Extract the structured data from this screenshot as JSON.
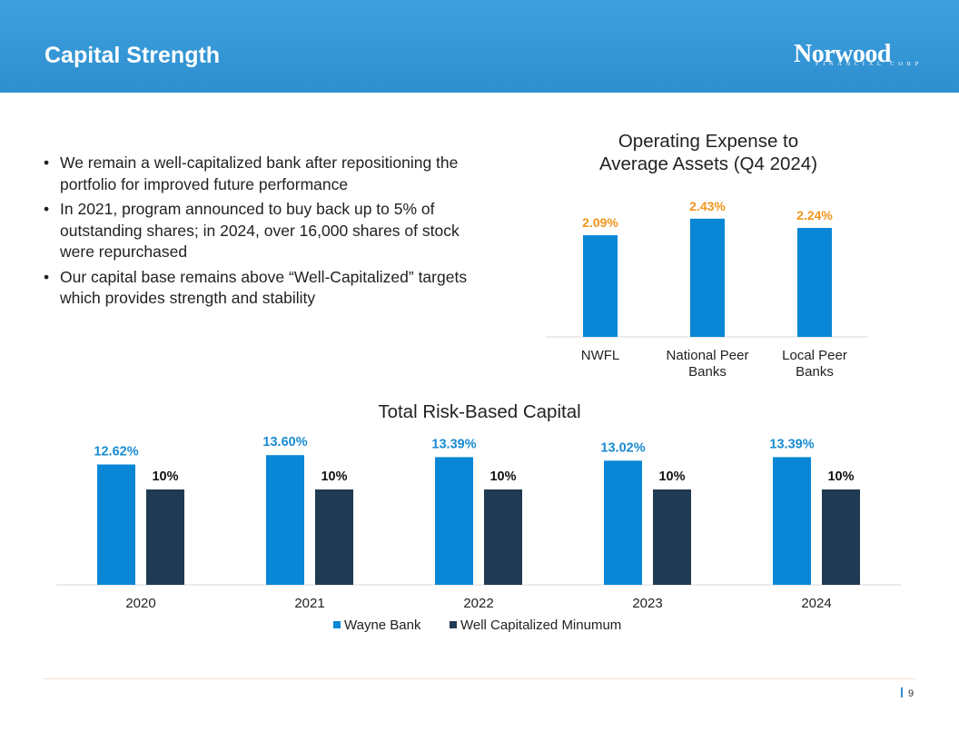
{
  "header": {
    "title": "Capital Strength",
    "logo_text": "Norwood",
    "logo_sub": "FINANCIAL CORP"
  },
  "bullets": [
    "We remain a well-capitalized bank after repositioning the portfolio for improved future performance",
    "In 2021, program announced to buy back up to 5% of outstanding shares; in 2024, over 16,000 shares of stock were repurchased",
    "Our capital base remains above “Well-Capitalized” targets which provides strength and stability"
  ],
  "bullet_symbol": "•",
  "colors": {
    "header_blue": "#2f8fd0",
    "bar_blue": "#0a86d6",
    "bar_navy": "#1f3a52",
    "label_orange": "#f0951c",
    "label_blue": "#1a8bd2"
  },
  "chart_data": [
    {
      "type": "bar",
      "title": "Operating Expense to Average Assets (Q4 2024)",
      "title_lines": [
        "Operating Expense to",
        "Average Assets (Q4 2024)"
      ],
      "categories": [
        "NWFL",
        "National Peer Banks",
        "Local Peer Banks"
      ],
      "category_lines": [
        [
          "NWFL"
        ],
        [
          "National Peer",
          "Banks"
        ],
        [
          "Local Peer",
          "Banks"
        ]
      ],
      "values": [
        2.09,
        2.43,
        2.24
      ],
      "data_labels": [
        "2.09%",
        "2.43%",
        "2.24%"
      ],
      "ylim": [
        0,
        2.8
      ],
      "xlabel": "",
      "ylabel": ""
    },
    {
      "type": "bar",
      "title": "Total Risk-Based Capital",
      "categories": [
        "2020",
        "2021",
        "2022",
        "2023",
        "2024"
      ],
      "series": [
        {
          "name": "Wayne Bank",
          "values": [
            12.62,
            13.6,
            13.39,
            13.02,
            13.39
          ],
          "data_labels": [
            "12.62%",
            "13.60%",
            "13.39%",
            "13.02%",
            "13.39%"
          ]
        },
        {
          "name": "Well Capitalized Minumum",
          "values": [
            10,
            10,
            10,
            10,
            10
          ],
          "data_labels": [
            "10%",
            "10%",
            "10%",
            "10%",
            "10%"
          ]
        }
      ],
      "ylim": [
        0,
        14
      ],
      "legend": "bottom",
      "xlabel": "",
      "ylabel": ""
    }
  ],
  "footer": {
    "page_number": "9"
  }
}
